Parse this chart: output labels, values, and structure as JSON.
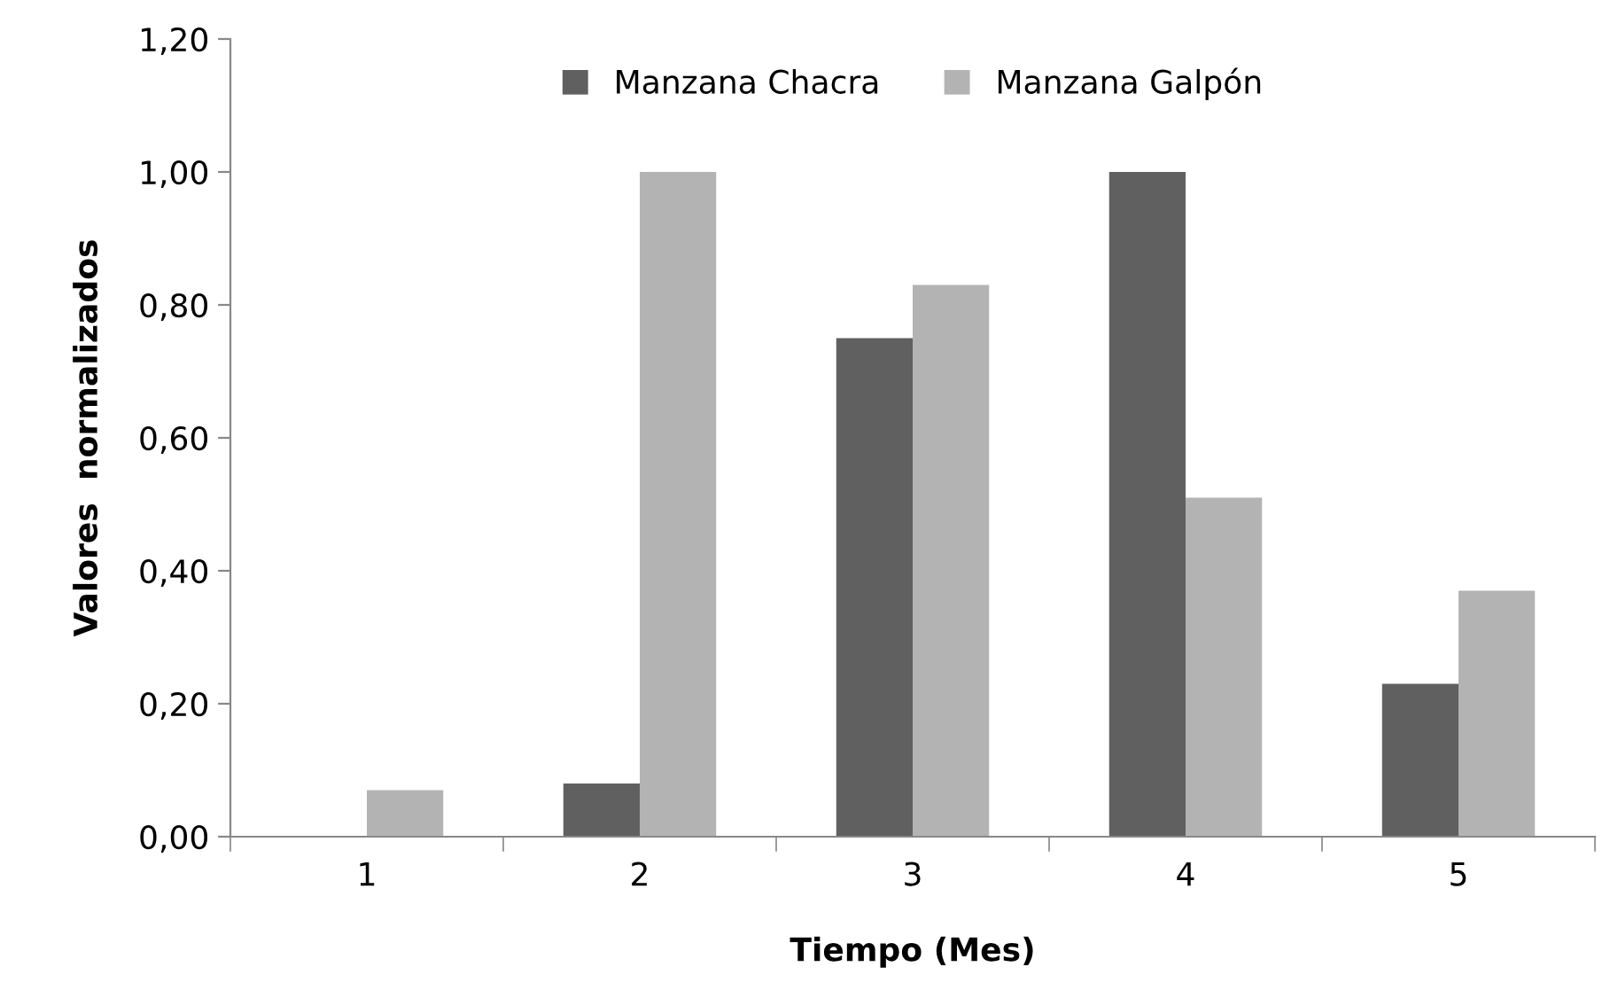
{
  "chart_data": {
    "type": "bar",
    "xlabel": "Tiempo (Mes)",
    "ylabel": "Valores  normalizados",
    "categories": [
      "1",
      "2",
      "3",
      "4",
      "5"
    ],
    "series": [
      {
        "name": "Manzana Chacra",
        "color": "#606060",
        "values": [
          0,
          0.08,
          0.75,
          1.0,
          0.23
        ]
      },
      {
        "name": "Manzana Galpón",
        "color": "#b3b3b3",
        "values": [
          0.07,
          1.0,
          0.83,
          0.51,
          0.37
        ]
      }
    ],
    "ylim": [
      0,
      1.2
    ],
    "yticks": [
      {
        "value": 0,
        "label": "0,00"
      },
      {
        "value": 0.2,
        "label": "0,20"
      },
      {
        "value": 0.4,
        "label": "0,40"
      },
      {
        "value": 0.6,
        "label": "0,60"
      },
      {
        "value": 0.8,
        "label": "0,80"
      },
      {
        "value": 1.0,
        "label": "1,00"
      },
      {
        "value": 1.2,
        "label": "1,20"
      }
    ],
    "grid": false,
    "legend": "top"
  }
}
